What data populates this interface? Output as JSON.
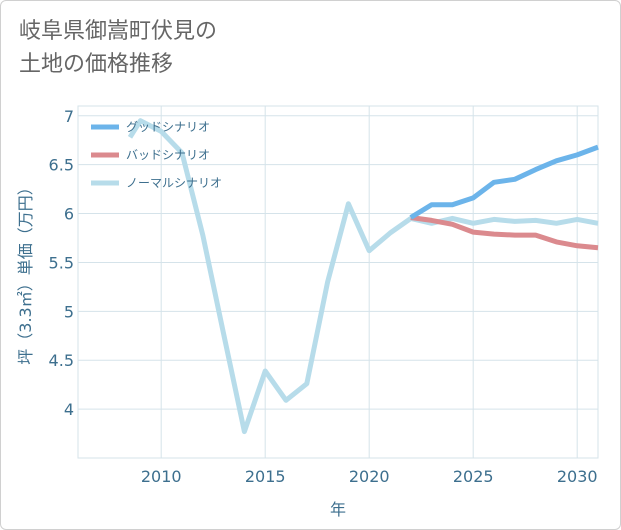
{
  "title_line1": "岐阜県御嵩町伏見の",
  "title_line2": "土地の価格推移",
  "chart_data": {
    "type": "line",
    "xlabel": "年",
    "ylabel": "坪（3.3㎡）単価（万円）",
    "xlim": [
      2006,
      2031
    ],
    "ylim": [
      3.5,
      7.1
    ],
    "x_ticks": [
      "2010",
      "2015",
      "2020",
      "2025",
      "2030"
    ],
    "y_ticks": [
      "4",
      "4.5",
      "5",
      "5.5",
      "6",
      "6.5",
      "7"
    ],
    "legend_position": "top-left",
    "grid": true,
    "series": [
      {
        "name": "グッドシナリオ",
        "color": "#6cb4ea",
        "x": [
          2022,
          2023,
          2024,
          2025,
          2026,
          2027,
          2028,
          2029,
          2030,
          2031
        ],
        "y": [
          5.96,
          6.09,
          6.09,
          6.16,
          6.32,
          6.35,
          6.45,
          6.54,
          6.6,
          6.68
        ]
      },
      {
        "name": "バッドシナリオ",
        "color": "#db8a8e",
        "x": [
          2022,
          2023,
          2024,
          2025,
          2026,
          2027,
          2028,
          2029,
          2030,
          2031
        ],
        "y": [
          5.96,
          5.93,
          5.89,
          5.81,
          5.79,
          5.78,
          5.78,
          5.71,
          5.67,
          5.65
        ]
      },
      {
        "name": "ノーマルシナリオ",
        "color": "#b7dcea",
        "x": [
          2008.5,
          2009,
          2010,
          2011,
          2012,
          2013,
          2014,
          2015,
          2016,
          2017,
          2018,
          2019,
          2020,
          2021,
          2022,
          2023,
          2024,
          2025,
          2026,
          2027,
          2028,
          2029,
          2030,
          2031
        ],
        "y": [
          6.78,
          6.95,
          6.84,
          6.62,
          5.78,
          4.77,
          3.77,
          4.39,
          4.09,
          4.26,
          5.3,
          6.1,
          5.62,
          5.8,
          5.95,
          5.9,
          5.95,
          5.9,
          5.94,
          5.92,
          5.93,
          5.9,
          5.94,
          5.9
        ]
      }
    ]
  }
}
